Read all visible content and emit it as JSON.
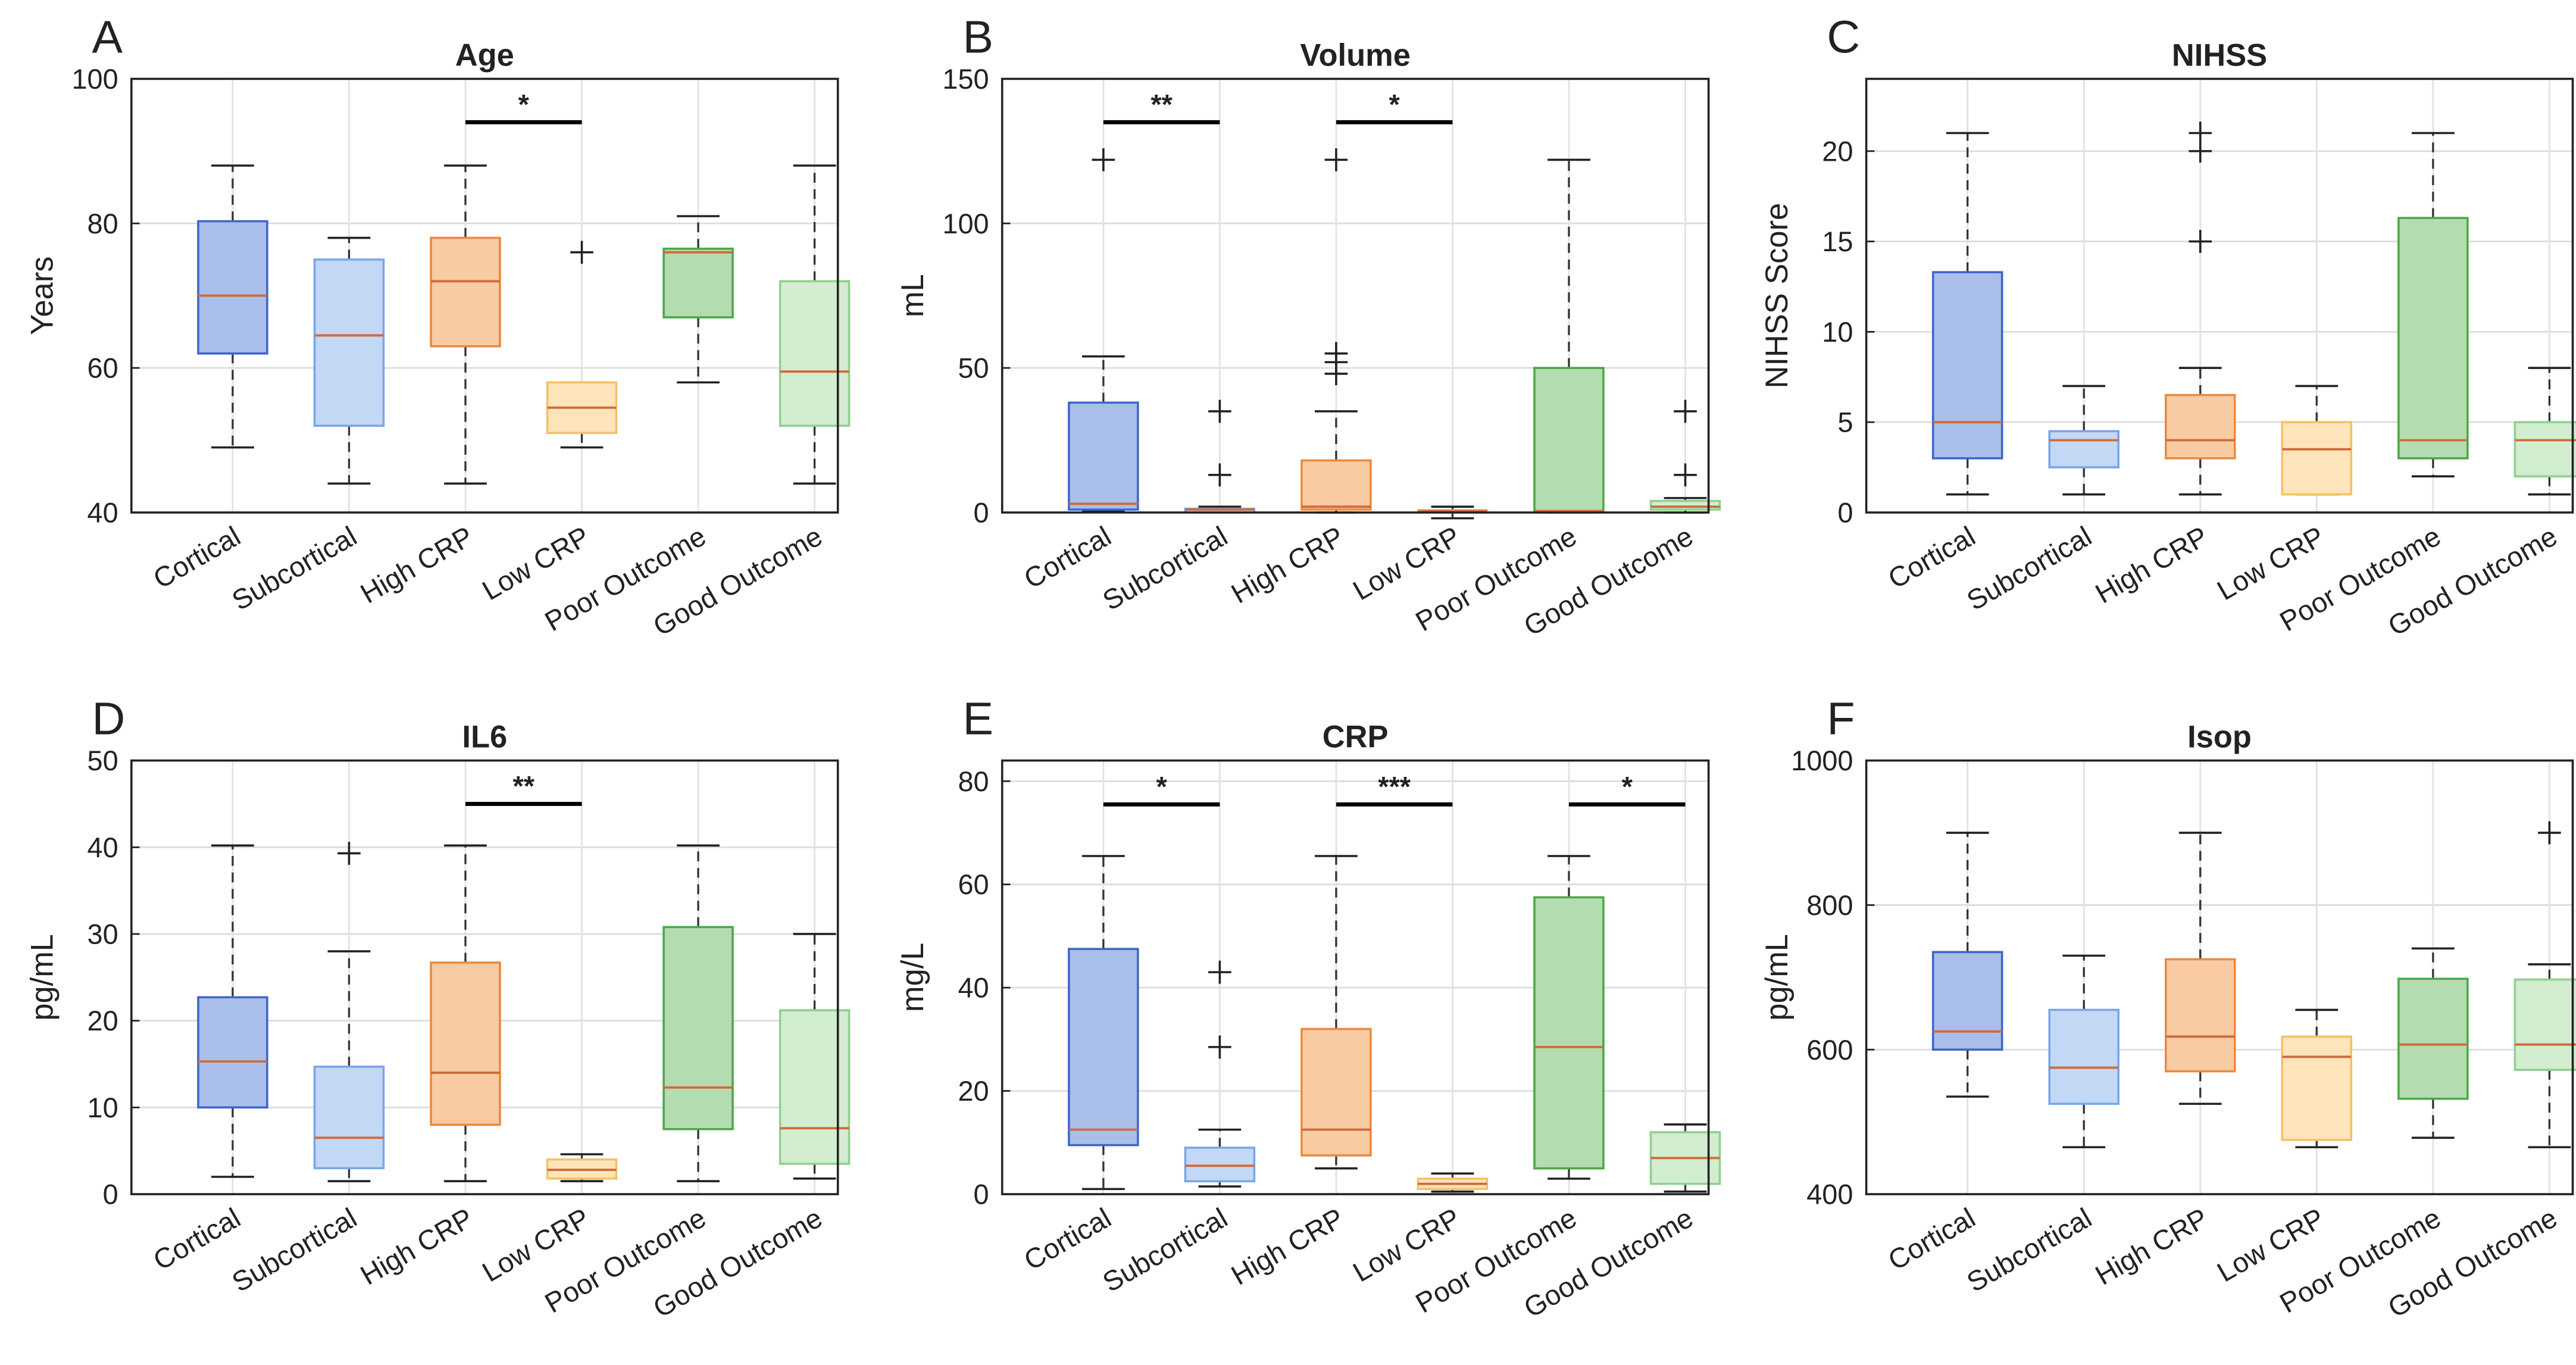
{
  "categories": [
    "Cortical",
    "Subcortical",
    "High CRP",
    "Low CRP",
    "Poor Outcome",
    "Good Outcome"
  ],
  "colors": {
    "fills": [
      "#a9bfe9",
      "#c3d8f4",
      "#f8cba3",
      "#fde4bb",
      "#b4dcb1",
      "#d3edd1"
    ],
    "strokes": [
      "#3d66cc",
      "#78a6ea",
      "#ea8a3c",
      "#f3c265",
      "#4aa84a",
      "#90d090"
    ],
    "median": "#d06a3a"
  },
  "chart_data": [
    {
      "type": "box",
      "letter": "A",
      "title": "Age",
      "ylabel": "Years",
      "ylim": [
        40,
        100
      ],
      "yticks": [
        40,
        60,
        80,
        100
      ],
      "grid": true,
      "boxes": [
        {
          "q1": 62,
          "median": 70,
          "q3": 80.3,
          "low": 49,
          "high": 88,
          "outliers": []
        },
        {
          "q1": 52,
          "median": 64.5,
          "q3": 75,
          "low": 44,
          "high": 78,
          "outliers": []
        },
        {
          "q1": 63,
          "median": 72,
          "q3": 78,
          "low": 44,
          "high": 88,
          "outliers": []
        },
        {
          "q1": 51,
          "median": 54.5,
          "q3": 58,
          "low": 49,
          "high": 58,
          "outliers": [
            76
          ]
        },
        {
          "q1": 67,
          "median": 76,
          "q3": 76.5,
          "low": 58,
          "high": 81,
          "outliers": []
        },
        {
          "q1": 52,
          "median": 59.5,
          "q3": 72,
          "low": 44,
          "high": 88,
          "outliers": []
        }
      ],
      "significance": [
        {
          "from": 3,
          "to": 4,
          "label": "*",
          "y": 94
        }
      ]
    },
    {
      "type": "box",
      "letter": "B",
      "title": "Volume",
      "ylabel": "mL",
      "ylim": [
        0,
        150
      ],
      "yticks": [
        0,
        50,
        100,
        150
      ],
      "grid": true,
      "boxes": [
        {
          "q1": 1,
          "median": 3,
          "q3": 38,
          "low": 0.5,
          "high": 54,
          "outliers": [
            122
          ]
        },
        {
          "q1": 0,
          "median": 1,
          "q3": 1.3,
          "low": 0,
          "high": 2,
          "outliers": [
            13,
            35
          ]
        },
        {
          "q1": 1,
          "median": 2,
          "q3": 18,
          "low": 0,
          "high": 35,
          "outliers": [
            48,
            52,
            55,
            122
          ]
        },
        {
          "q1": 0,
          "median": 0.5,
          "q3": 0.8,
          "low": -2,
          "high": 2,
          "outliers": []
        },
        {
          "q1": 0,
          "median": 0.5,
          "q3": 50,
          "low": 0,
          "high": 122,
          "outliers": []
        },
        {
          "q1": 1,
          "median": 2,
          "q3": 4,
          "low": 0,
          "high": 5,
          "outliers": [
            13,
            35
          ]
        }
      ],
      "significance": [
        {
          "from": 1,
          "to": 2,
          "label": "**",
          "y": 135
        },
        {
          "from": 3,
          "to": 4,
          "label": "*",
          "y": 135
        }
      ]
    },
    {
      "type": "box",
      "letter": "C",
      "title": "NIHSS",
      "ylabel": "NIHSS Score",
      "ylim": [
        0,
        24
      ],
      "yticks": [
        0,
        5,
        10,
        15,
        20
      ],
      "grid": true,
      "boxes": [
        {
          "q1": 3,
          "median": 5,
          "q3": 13.3,
          "low": 1,
          "high": 21,
          "outliers": []
        },
        {
          "q1": 2.5,
          "median": 4,
          "q3": 4.5,
          "low": 1,
          "high": 7,
          "outliers": []
        },
        {
          "q1": 3,
          "median": 4,
          "q3": 6.5,
          "low": 1,
          "high": 8,
          "outliers": [
            15,
            20,
            21
          ]
        },
        {
          "q1": 1,
          "median": 3.5,
          "q3": 5,
          "low": 1,
          "high": 7,
          "outliers": []
        },
        {
          "q1": 3,
          "median": 4,
          "q3": 16.3,
          "low": 2,
          "high": 21,
          "outliers": []
        },
        {
          "q1": 2,
          "median": 4,
          "q3": 5,
          "low": 1,
          "high": 8,
          "outliers": []
        }
      ],
      "significance": []
    },
    {
      "type": "box",
      "letter": "D",
      "title": "IL6",
      "ylabel": "pg/mL",
      "ylim": [
        0,
        50
      ],
      "yticks": [
        0,
        10,
        20,
        30,
        40,
        50
      ],
      "grid": true,
      "boxes": [
        {
          "q1": 10,
          "median": 15.3,
          "q3": 22.7,
          "low": 2,
          "high": 40.2,
          "outliers": []
        },
        {
          "q1": 3,
          "median": 6.5,
          "q3": 14.7,
          "low": 1.5,
          "high": 28,
          "outliers": [
            39.3
          ]
        },
        {
          "q1": 8,
          "median": 14,
          "q3": 26.7,
          "low": 1.5,
          "high": 40.2,
          "outliers": []
        },
        {
          "q1": 1.8,
          "median": 2.8,
          "q3": 4,
          "low": 1.5,
          "high": 4.6,
          "outliers": []
        },
        {
          "q1": 7.5,
          "median": 12.3,
          "q3": 30.8,
          "low": 1.5,
          "high": 40.2,
          "outliers": []
        },
        {
          "q1": 3.5,
          "median": 7.6,
          "q3": 21.2,
          "low": 1.8,
          "high": 30,
          "outliers": []
        }
      ],
      "significance": [
        {
          "from": 3,
          "to": 4,
          "label": "**",
          "y": 45
        }
      ]
    },
    {
      "type": "box",
      "letter": "E",
      "title": "CRP",
      "ylabel": "mg/L",
      "ylim": [
        0,
        84
      ],
      "yticks": [
        0,
        20,
        40,
        60,
        80
      ],
      "grid": true,
      "boxes": [
        {
          "q1": 9.5,
          "median": 12.5,
          "q3": 47.5,
          "low": 1,
          "high": 65.5,
          "outliers": []
        },
        {
          "q1": 2.5,
          "median": 5.5,
          "q3": 9,
          "low": 1.5,
          "high": 12.5,
          "outliers": [
            28.5,
            43
          ]
        },
        {
          "q1": 7.5,
          "median": 12.5,
          "q3": 32,
          "low": 5,
          "high": 65.5,
          "outliers": []
        },
        {
          "q1": 1,
          "median": 2,
          "q3": 3,
          "low": 0.5,
          "high": 4,
          "outliers": []
        },
        {
          "q1": 5,
          "median": 28.5,
          "q3": 57.5,
          "low": 3,
          "high": 65.5,
          "outliers": []
        },
        {
          "q1": 2,
          "median": 7,
          "q3": 12,
          "low": 0.5,
          "high": 13.5,
          "outliers": []
        }
      ],
      "significance": [
        {
          "from": 1,
          "to": 2,
          "label": "*",
          "y": 75.5
        },
        {
          "from": 3,
          "to": 4,
          "label": "***",
          "y": 75.5
        },
        {
          "from": 5,
          "to": 6,
          "label": "*",
          "y": 75.5
        }
      ]
    },
    {
      "type": "box",
      "letter": "F",
      "title": "Isop",
      "ylabel": "pg/mL",
      "ylim": [
        400,
        1000
      ],
      "yticks": [
        400,
        600,
        800,
        1000
      ],
      "grid": true,
      "boxes": [
        {
          "q1": 600,
          "median": 625,
          "q3": 735,
          "low": 535,
          "high": 900,
          "outliers": []
        },
        {
          "q1": 525,
          "median": 575,
          "q3": 655,
          "low": 465,
          "high": 730,
          "outliers": []
        },
        {
          "q1": 570,
          "median": 618,
          "q3": 725,
          "low": 525,
          "high": 900,
          "outliers": []
        },
        {
          "q1": 475,
          "median": 590,
          "q3": 618,
          "low": 465,
          "high": 655,
          "outliers": []
        },
        {
          "q1": 532,
          "median": 607,
          "q3": 698,
          "low": 478,
          "high": 740,
          "outliers": []
        },
        {
          "q1": 572,
          "median": 607,
          "q3": 697,
          "low": 465,
          "high": 718,
          "outliers": [
            900
          ]
        }
      ],
      "significance": []
    }
  ]
}
